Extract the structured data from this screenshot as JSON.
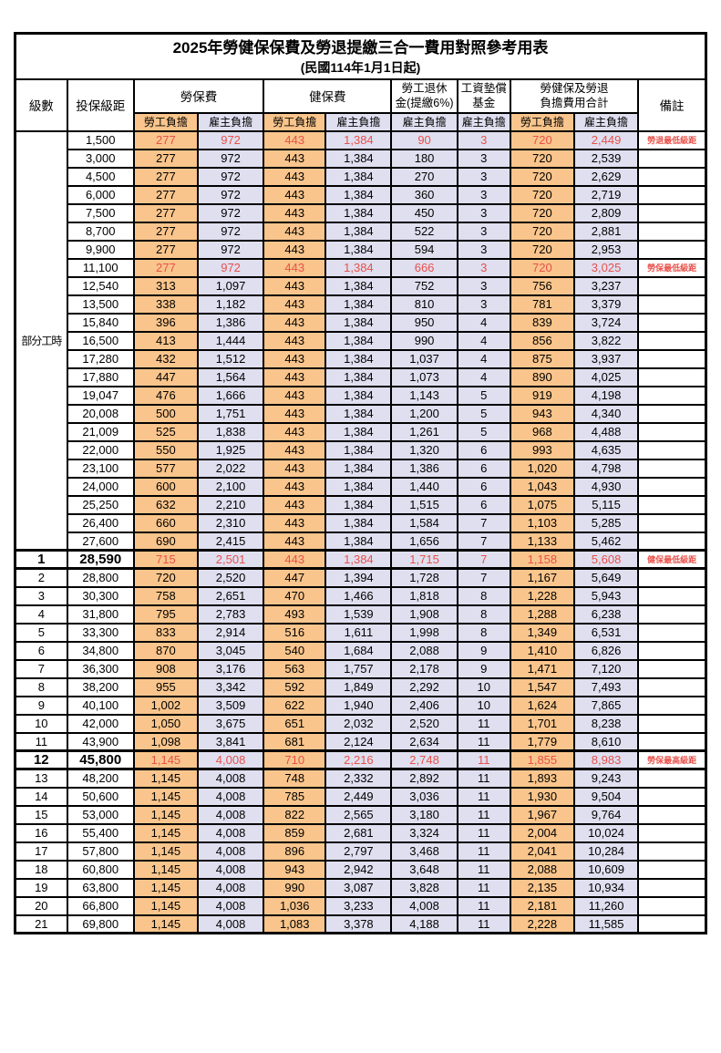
{
  "title": {
    "line1": "2025年勞健保保費及勞退提繳三合一費用對照參考用表",
    "line2": "(民國114年1月1日起)"
  },
  "header": {
    "level": "級數",
    "bracket": "投保級距",
    "labor_ins": "勞保費",
    "health_ins": "健保費",
    "pension_line1": "勞工退休",
    "pension_line2": "金(提繳6%)",
    "wage_fund_line1": "工資墊償",
    "wage_fund_line2": "基金",
    "total_line1": "勞健保及勞退",
    "total_line2": "負擔費用合計",
    "remark": "備註",
    "employee_share": "勞工負擔",
    "employer_share": "雇主負擔"
  },
  "colors": {
    "employee_bg": "#F9C58C",
    "employer_bg": "#E0DFF0",
    "highlight_red": "#E8514A"
  },
  "part_time": {
    "label": "部分工時",
    "span": 23
  },
  "column_classes": [
    "emp",
    "er",
    "emp",
    "er",
    "er",
    "er",
    "emp",
    "er"
  ],
  "rows": [
    {
      "lv": "",
      "br": "1,500",
      "v": [
        "277",
        "972",
        "443",
        "1,384",
        "90",
        "3",
        "720",
        "2,449"
      ],
      "rm": "勞退最低級距",
      "hl": true,
      "bold": false
    },
    {
      "lv": "",
      "br": "3,000",
      "v": [
        "277",
        "972",
        "443",
        "1,384",
        "180",
        "3",
        "720",
        "2,539"
      ],
      "rm": "",
      "hl": false,
      "bold": false
    },
    {
      "lv": "",
      "br": "4,500",
      "v": [
        "277",
        "972",
        "443",
        "1,384",
        "270",
        "3",
        "720",
        "2,629"
      ],
      "rm": "",
      "hl": false,
      "bold": false
    },
    {
      "lv": "",
      "br": "6,000",
      "v": [
        "277",
        "972",
        "443",
        "1,384",
        "360",
        "3",
        "720",
        "2,719"
      ],
      "rm": "",
      "hl": false,
      "bold": false
    },
    {
      "lv": "",
      "br": "7,500",
      "v": [
        "277",
        "972",
        "443",
        "1,384",
        "450",
        "3",
        "720",
        "2,809"
      ],
      "rm": "",
      "hl": false,
      "bold": false
    },
    {
      "lv": "",
      "br": "8,700",
      "v": [
        "277",
        "972",
        "443",
        "1,384",
        "522",
        "3",
        "720",
        "2,881"
      ],
      "rm": "",
      "hl": false,
      "bold": false
    },
    {
      "lv": "",
      "br": "9,900",
      "v": [
        "277",
        "972",
        "443",
        "1,384",
        "594",
        "3",
        "720",
        "2,953"
      ],
      "rm": "",
      "hl": false,
      "bold": false
    },
    {
      "lv": "",
      "br": "11,100",
      "v": [
        "277",
        "972",
        "443",
        "1,384",
        "666",
        "3",
        "720",
        "3,025"
      ],
      "rm": "勞保最低級距",
      "hl": true,
      "bold": false
    },
    {
      "lv": "",
      "br": "12,540",
      "v": [
        "313",
        "1,097",
        "443",
        "1,384",
        "752",
        "3",
        "756",
        "3,237"
      ],
      "rm": "",
      "hl": false,
      "bold": false
    },
    {
      "lv": "",
      "br": "13,500",
      "v": [
        "338",
        "1,182",
        "443",
        "1,384",
        "810",
        "3",
        "781",
        "3,379"
      ],
      "rm": "",
      "hl": false,
      "bold": false
    },
    {
      "lv": "",
      "br": "15,840",
      "v": [
        "396",
        "1,386",
        "443",
        "1,384",
        "950",
        "4",
        "839",
        "3,724"
      ],
      "rm": "",
      "hl": false,
      "bold": false
    },
    {
      "lv": "",
      "br": "16,500",
      "v": [
        "413",
        "1,444",
        "443",
        "1,384",
        "990",
        "4",
        "856",
        "3,822"
      ],
      "rm": "",
      "hl": false,
      "bold": false
    },
    {
      "lv": "",
      "br": "17,280",
      "v": [
        "432",
        "1,512",
        "443",
        "1,384",
        "1,037",
        "4",
        "875",
        "3,937"
      ],
      "rm": "",
      "hl": false,
      "bold": false
    },
    {
      "lv": "",
      "br": "17,880",
      "v": [
        "447",
        "1,564",
        "443",
        "1,384",
        "1,073",
        "4",
        "890",
        "4,025"
      ],
      "rm": "",
      "hl": false,
      "bold": false
    },
    {
      "lv": "",
      "br": "19,047",
      "v": [
        "476",
        "1,666",
        "443",
        "1,384",
        "1,143",
        "5",
        "919",
        "4,198"
      ],
      "rm": "",
      "hl": false,
      "bold": false
    },
    {
      "lv": "",
      "br": "20,008",
      "v": [
        "500",
        "1,751",
        "443",
        "1,384",
        "1,200",
        "5",
        "943",
        "4,340"
      ],
      "rm": "",
      "hl": false,
      "bold": false
    },
    {
      "lv": "",
      "br": "21,009",
      "v": [
        "525",
        "1,838",
        "443",
        "1,384",
        "1,261",
        "5",
        "968",
        "4,488"
      ],
      "rm": "",
      "hl": false,
      "bold": false
    },
    {
      "lv": "",
      "br": "22,000",
      "v": [
        "550",
        "1,925",
        "443",
        "1,384",
        "1,320",
        "6",
        "993",
        "4,635"
      ],
      "rm": "",
      "hl": false,
      "bold": false
    },
    {
      "lv": "",
      "br": "23,100",
      "v": [
        "577",
        "2,022",
        "443",
        "1,384",
        "1,386",
        "6",
        "1,020",
        "4,798"
      ],
      "rm": "",
      "hl": false,
      "bold": false
    },
    {
      "lv": "",
      "br": "24,000",
      "v": [
        "600",
        "2,100",
        "443",
        "1,384",
        "1,440",
        "6",
        "1,043",
        "4,930"
      ],
      "rm": "",
      "hl": false,
      "bold": false
    },
    {
      "lv": "",
      "br": "25,250",
      "v": [
        "632",
        "2,210",
        "443",
        "1,384",
        "1,515",
        "6",
        "1,075",
        "5,115"
      ],
      "rm": "",
      "hl": false,
      "bold": false
    },
    {
      "lv": "",
      "br": "26,400",
      "v": [
        "660",
        "2,310",
        "443",
        "1,384",
        "1,584",
        "7",
        "1,103",
        "5,285"
      ],
      "rm": "",
      "hl": false,
      "bold": false
    },
    {
      "lv": "",
      "br": "27,600",
      "v": [
        "690",
        "2,415",
        "443",
        "1,384",
        "1,656",
        "7",
        "1,133",
        "5,462"
      ],
      "rm": "",
      "hl": false,
      "bold": false
    },
    {
      "lv": "1",
      "br": "28,590",
      "v": [
        "715",
        "2,501",
        "443",
        "1,384",
        "1,715",
        "7",
        "1,158",
        "5,608"
      ],
      "rm": "健保最低級距",
      "hl": true,
      "bold": true
    },
    {
      "lv": "2",
      "br": "28,800",
      "v": [
        "720",
        "2,520",
        "447",
        "1,394",
        "1,728",
        "7",
        "1,167",
        "5,649"
      ],
      "rm": "",
      "hl": false,
      "bold": false
    },
    {
      "lv": "3",
      "br": "30,300",
      "v": [
        "758",
        "2,651",
        "470",
        "1,466",
        "1,818",
        "8",
        "1,228",
        "5,943"
      ],
      "rm": "",
      "hl": false,
      "bold": false
    },
    {
      "lv": "4",
      "br": "31,800",
      "v": [
        "795",
        "2,783",
        "493",
        "1,539",
        "1,908",
        "8",
        "1,288",
        "6,238"
      ],
      "rm": "",
      "hl": false,
      "bold": false
    },
    {
      "lv": "5",
      "br": "33,300",
      "v": [
        "833",
        "2,914",
        "516",
        "1,611",
        "1,998",
        "8",
        "1,349",
        "6,531"
      ],
      "rm": "",
      "hl": false,
      "bold": false
    },
    {
      "lv": "6",
      "br": "34,800",
      "v": [
        "870",
        "3,045",
        "540",
        "1,684",
        "2,088",
        "9",
        "1,410",
        "6,826"
      ],
      "rm": "",
      "hl": false,
      "bold": false
    },
    {
      "lv": "7",
      "br": "36,300",
      "v": [
        "908",
        "3,176",
        "563",
        "1,757",
        "2,178",
        "9",
        "1,471",
        "7,120"
      ],
      "rm": "",
      "hl": false,
      "bold": false
    },
    {
      "lv": "8",
      "br": "38,200",
      "v": [
        "955",
        "3,342",
        "592",
        "1,849",
        "2,292",
        "10",
        "1,547",
        "7,493"
      ],
      "rm": "",
      "hl": false,
      "bold": false
    },
    {
      "lv": "9",
      "br": "40,100",
      "v": [
        "1,002",
        "3,509",
        "622",
        "1,940",
        "2,406",
        "10",
        "1,624",
        "7,865"
      ],
      "rm": "",
      "hl": false,
      "bold": false
    },
    {
      "lv": "10",
      "br": "42,000",
      "v": [
        "1,050",
        "3,675",
        "651",
        "2,032",
        "2,520",
        "11",
        "1,701",
        "8,238"
      ],
      "rm": "",
      "hl": false,
      "bold": false
    },
    {
      "lv": "11",
      "br": "43,900",
      "v": [
        "1,098",
        "3,841",
        "681",
        "2,124",
        "2,634",
        "11",
        "1,779",
        "8,610"
      ],
      "rm": "",
      "hl": false,
      "bold": false
    },
    {
      "lv": "12",
      "br": "45,800",
      "v": [
        "1,145",
        "4,008",
        "710",
        "2,216",
        "2,748",
        "11",
        "1,855",
        "8,983"
      ],
      "rm": "勞保最高級距",
      "hl": true,
      "bold": true
    },
    {
      "lv": "13",
      "br": "48,200",
      "v": [
        "1,145",
        "4,008",
        "748",
        "2,332",
        "2,892",
        "11",
        "1,893",
        "9,243"
      ],
      "rm": "",
      "hl": false,
      "bold": false
    },
    {
      "lv": "14",
      "br": "50,600",
      "v": [
        "1,145",
        "4,008",
        "785",
        "2,449",
        "3,036",
        "11",
        "1,930",
        "9,504"
      ],
      "rm": "",
      "hl": false,
      "bold": false
    },
    {
      "lv": "15",
      "br": "53,000",
      "v": [
        "1,145",
        "4,008",
        "822",
        "2,565",
        "3,180",
        "11",
        "1,967",
        "9,764"
      ],
      "rm": "",
      "hl": false,
      "bold": false
    },
    {
      "lv": "16",
      "br": "55,400",
      "v": [
        "1,145",
        "4,008",
        "859",
        "2,681",
        "3,324",
        "11",
        "2,004",
        "10,024"
      ],
      "rm": "",
      "hl": false,
      "bold": false
    },
    {
      "lv": "17",
      "br": "57,800",
      "v": [
        "1,145",
        "4,008",
        "896",
        "2,797",
        "3,468",
        "11",
        "2,041",
        "10,284"
      ],
      "rm": "",
      "hl": false,
      "bold": false
    },
    {
      "lv": "18",
      "br": "60,800",
      "v": [
        "1,145",
        "4,008",
        "943",
        "2,942",
        "3,648",
        "11",
        "2,088",
        "10,609"
      ],
      "rm": "",
      "hl": false,
      "bold": false
    },
    {
      "lv": "19",
      "br": "63,800",
      "v": [
        "1,145",
        "4,008",
        "990",
        "3,087",
        "3,828",
        "11",
        "2,135",
        "10,934"
      ],
      "rm": "",
      "hl": false,
      "bold": false
    },
    {
      "lv": "20",
      "br": "66,800",
      "v": [
        "1,145",
        "4,008",
        "1,036",
        "3,233",
        "4,008",
        "11",
        "2,181",
        "11,260"
      ],
      "rm": "",
      "hl": false,
      "bold": false
    },
    {
      "lv": "21",
      "br": "69,800",
      "v": [
        "1,145",
        "4,008",
        "1,083",
        "3,378",
        "4,188",
        "11",
        "2,228",
        "11,585"
      ],
      "rm": "",
      "hl": false,
      "bold": false
    }
  ]
}
